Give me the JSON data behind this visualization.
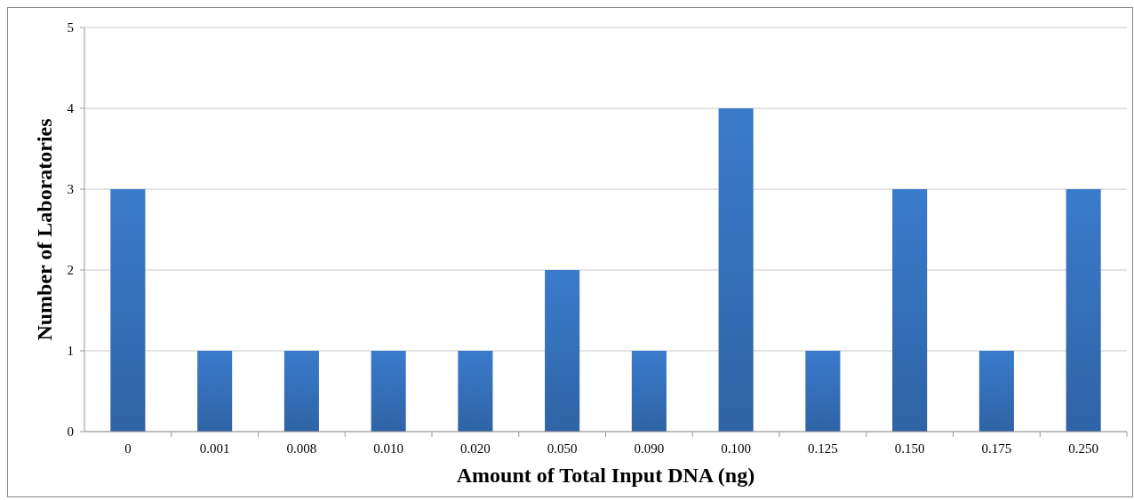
{
  "chart_data": {
    "type": "bar",
    "xlabel": "Amount of Total Input DNA (ng)",
    "ylabel": "Number of Laboratories",
    "categories": [
      "0",
      "0.001",
      "0.008",
      "0.010",
      "0.020",
      "0.050",
      "0.090",
      "0.100",
      "0.125",
      "0.150",
      "0.175",
      "0.250"
    ],
    "values": [
      3,
      1,
      1,
      1,
      1,
      2,
      1,
      4,
      1,
      3,
      1,
      3
    ],
    "color": "#3a7bcc",
    "ylim": [
      0,
      5
    ],
    "yticks": [
      0,
      1,
      2,
      3,
      4,
      5
    ],
    "grid": "y"
  }
}
